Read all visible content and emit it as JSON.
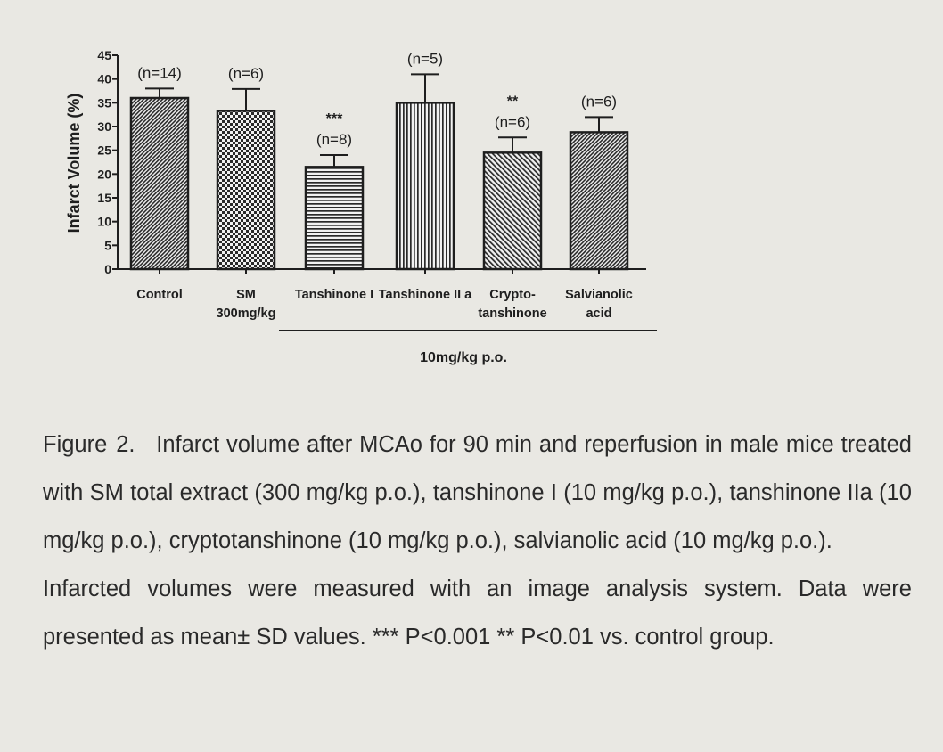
{
  "chart_data": {
    "type": "bar",
    "ylabel": "Infarct Volume (%)",
    "ylim": [
      0,
      45
    ],
    "yticks": [
      0,
      5,
      10,
      15,
      20,
      25,
      30,
      35,
      40,
      45
    ],
    "group_label": "10mg/kg p.o.",
    "bars": [
      {
        "label": [
          "Control"
        ],
        "value": 36,
        "error": 2,
        "annotation": [
          "(n=14)"
        ],
        "pattern": "dense-diagonal"
      },
      {
        "label": [
          "SM",
          "300mg/kg"
        ],
        "value": 33.3,
        "error": 4.6,
        "annotation": [
          "(n=6)"
        ],
        "pattern": "checker"
      },
      {
        "label": [
          "Tanshinone I"
        ],
        "value": 21.5,
        "error": 2.5,
        "annotation": [
          "***",
          "(n=8)"
        ],
        "pattern": "horizontal"
      },
      {
        "label": [
          "Tanshinone II a"
        ],
        "value": 35,
        "error": 6,
        "annotation": [
          "(n=5)"
        ],
        "pattern": "vertical"
      },
      {
        "label": [
          "Crypto-",
          "tanshinone"
        ],
        "value": 24.5,
        "error": 3.2,
        "annotation": [
          "**",
          "(n=6)"
        ],
        "pattern": "diagonal"
      },
      {
        "label": [
          "Salvianolic",
          "acid"
        ],
        "value": 28.8,
        "error": 3.2,
        "annotation": [
          "(n=6)"
        ],
        "pattern": "dense-diagonal"
      }
    ]
  },
  "caption": {
    "label": "Figure 2.",
    "text": "Infarct volume after MCAo for 90 min and reperfusion in male mice treated with SM total extract (300 mg/kg p.o.), tanshinone I (10 mg/kg p.o.), tanshinone IIa (10 mg/kg p.o.), cryptotanshinone (10 mg/kg p.o.), salvianolic acid (10 mg/kg p.o.).",
    "note": "Infarcted volumes were measured with an image analysis system. Data were presented as mean± SD values. *** P<0.001 ** P<0.01 vs. control group."
  }
}
